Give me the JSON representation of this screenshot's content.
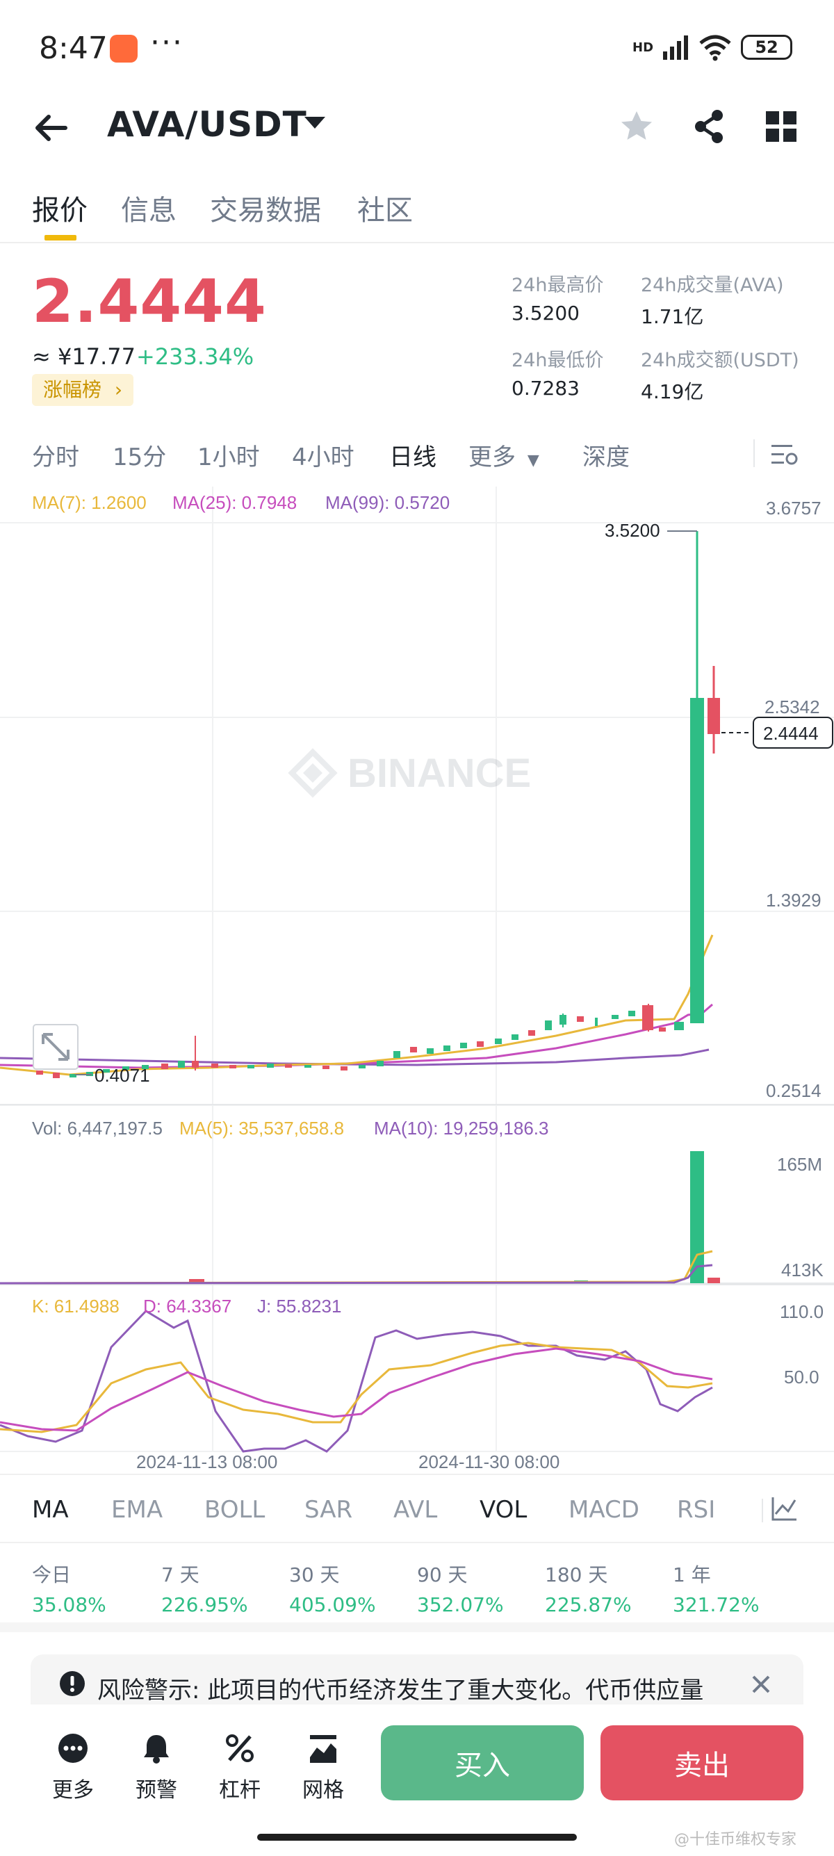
{
  "status_bar": {
    "time": "8:47",
    "dots": "···",
    "network": "HD",
    "battery": "52"
  },
  "header": {
    "title": "AVA/USDT"
  },
  "tabs": [
    {
      "label": "报价"
    },
    {
      "label": "信息"
    },
    {
      "label": "交易数据"
    },
    {
      "label": "社区"
    }
  ],
  "ticker": {
    "price": "2.4444",
    "cny": "≈ ¥17.77",
    "change": "+233.34%",
    "badge": "涨幅榜",
    "high_label": "24h最高价",
    "high": "3.5200",
    "low_label": "24h最低价",
    "low": "0.7283",
    "vol_label": "24h成交量(AVA)",
    "vol": "1.71亿",
    "amt_label": "24h成交额(USDT)",
    "amt": "4.19亿"
  },
  "timeframes": [
    "分时",
    "15分",
    "1小时",
    "4小时",
    "日线",
    "更多",
    "深度"
  ],
  "chart": {
    "ma_legend": {
      "ma7": "MA(7): 1.2600",
      "ma25": "MA(25): 0.7948",
      "ma99": "MA(99): 0.5720"
    },
    "price_axis": [
      "3.6757",
      "2.5342",
      "1.3929",
      "0.2514"
    ],
    "current_price_tag": "2.4444",
    "high_marker": "3.5200",
    "low_marker": "0.4071",
    "watermark": "BINANCE",
    "vol_legend": {
      "vol": "Vol: 6,447,197.5",
      "ma5": "MA(5): 35,537,658.8",
      "ma10": "MA(10): 19,259,186.3"
    },
    "vol_axis": [
      "165M",
      "413K"
    ],
    "kdj_legend": {
      "k": "K: 61.4988",
      "d": "D: 64.3367",
      "j": "J: 55.8231"
    },
    "kdj_axis": [
      "110.0",
      "50.0"
    ],
    "x_dates": [
      "2024-11-13 08:00",
      "2024-11-30 08:00"
    ],
    "colors": {
      "up": "#2ebd85",
      "down": "#e45262",
      "ma7": "#e8b83b",
      "ma25": "#c64dbd",
      "ma99": "#8e5cb8"
    }
  },
  "indicators": [
    "MA",
    "EMA",
    "BOLL",
    "SAR",
    "AVL",
    "VOL",
    "MACD",
    "RSI"
  ],
  "performance": [
    {
      "label": "今日",
      "value": "35.08%"
    },
    {
      "label": "7 天",
      "value": "226.95%"
    },
    {
      "label": "30 天",
      "value": "405.09%"
    },
    {
      "label": "90 天",
      "value": "352.07%"
    },
    {
      "label": "180 天",
      "value": "225.87%"
    },
    {
      "label": "1 年",
      "value": "321.72%"
    }
  ],
  "risk_warning": "风险警示: 此项目的代币经济发生了重大变化。代币供应量",
  "bottom_nav": {
    "items": [
      {
        "label": "更多",
        "icon": "more-icon"
      },
      {
        "label": "预警",
        "icon": "bell-icon"
      },
      {
        "label": "杠杆",
        "icon": "leverage-icon"
      },
      {
        "label": "网格",
        "icon": "grid-icon"
      }
    ],
    "buy": "买入",
    "sell": "卖出"
  },
  "watermark_text": "@十佳币维权专家"
}
